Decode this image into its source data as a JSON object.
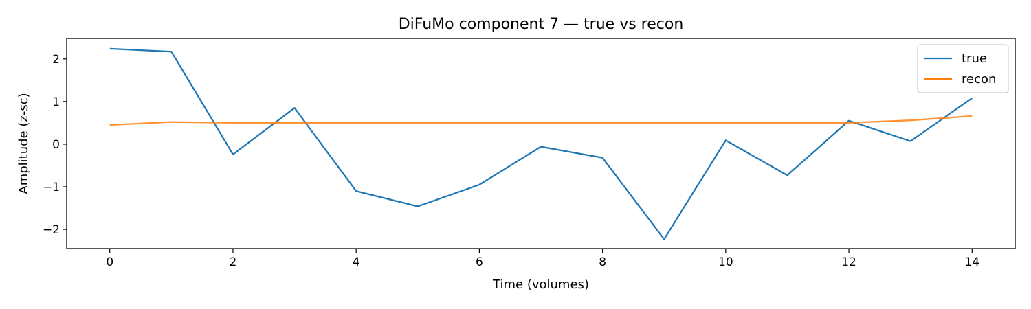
{
  "chart_data": {
    "type": "line",
    "title": "DiFuMo component 7 — true vs recon",
    "xlabel": "Time (volumes)",
    "ylabel": "Amplitude (z-sc)",
    "xlim": [
      -0.7,
      14.7
    ],
    "ylim": [
      -2.45,
      2.48
    ],
    "x_ticks": [
      0,
      2,
      4,
      6,
      8,
      10,
      12,
      14
    ],
    "x_tick_labels": [
      "0",
      "2",
      "4",
      "6",
      "8",
      "10",
      "12",
      "14"
    ],
    "y_ticks": [
      -2,
      -1,
      0,
      1,
      2
    ],
    "y_tick_labels": [
      "−2",
      "−1",
      "0",
      "1",
      "2"
    ],
    "grid": false,
    "legend": "top-right",
    "x": [
      0,
      1,
      2,
      3,
      4,
      5,
      6,
      7,
      8,
      9,
      10,
      11,
      12,
      13,
      14
    ],
    "series": [
      {
        "name": "true",
        "color": "#1f77b4",
        "values": [
          2.24,
          2.17,
          -0.24,
          0.85,
          -1.1,
          -1.46,
          -0.95,
          -0.06,
          -0.32,
          -2.23,
          0.09,
          -0.73,
          0.55,
          0.07,
          1.08
        ]
      },
      {
        "name": "recon",
        "color": "#ff7f0e",
        "values": [
          0.45,
          0.52,
          0.5,
          0.5,
          0.5,
          0.5,
          0.5,
          0.5,
          0.5,
          0.5,
          0.5,
          0.5,
          0.5,
          0.56,
          0.66
        ]
      }
    ]
  }
}
